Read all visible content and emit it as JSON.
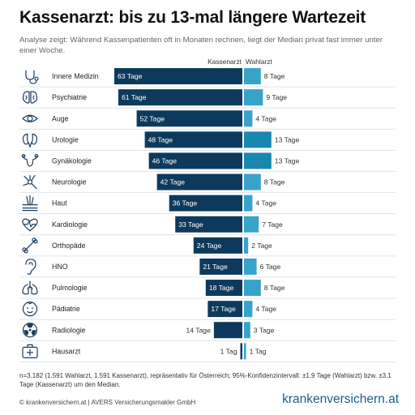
{
  "title": "Kassenarzt: bis zu 13-mal längere Wartezeit",
  "subtitle": "Analyse zeigt: Während Kassenpatienten oft in Monaten rechnen, liegt der Median privat fast immer unter einer Woche.",
  "footnote": "n=3.182 (1.591 Wahlarzt, 1.591 Kassenarzt), repräsentativ für Österreich; 95%-Konfidenzintervall: ±1,9 Tage (Wahlarzt) bzw. ±3,1 Tage (Kassenarzt) um den Median.",
  "copyright": "© krankenversichern.at | AVERS Versicherungsmakler  GmbH",
  "brand": "krankenversichern.at",
  "colors": {
    "kassenarzt": "#0d3a5c",
    "wahlarzt_high": "#1a87b0",
    "wahlarzt_low": "#38a3c9",
    "icon": "#1f3e5c",
    "divider": "#d9dde1"
  },
  "chart_data": {
    "type": "bar",
    "orientation": "horizontal-diverging",
    "unit": "Tage",
    "series": [
      {
        "name": "Kassenarzt",
        "values": [
          63,
          61,
          52,
          48,
          46,
          42,
          36,
          33,
          24,
          21,
          18,
          17,
          14,
          1
        ]
      },
      {
        "name": "Wahlarzt",
        "values": [
          8,
          9,
          4,
          13,
          13,
          8,
          4,
          7,
          2,
          6,
          8,
          4,
          3,
          1
        ]
      }
    ],
    "categories": [
      "Innere Medizin",
      "Psychiatrie",
      "Auge",
      "Urologie",
      "Gynäkologie",
      "Neurologie",
      "Haut",
      "Kardiologie",
      "Orthopäde",
      "HNO",
      "Pulmologie",
      "Pädiatrie",
      "Radiologie",
      "Hausarzt"
    ],
    "icons": [
      "stethoscope-icon",
      "brain-icon",
      "eye-icon",
      "kidney-icon",
      "uterus-icon",
      "neuron-icon",
      "skin-icon",
      "heart-pulse-icon",
      "bone-icon",
      "ear-icon",
      "lungs-icon",
      "child-face-icon",
      "radiation-icon",
      "medical-bag-icon"
    ],
    "kassen_labels": [
      "63 Tage",
      "61 Tage",
      "52 Tage",
      "48 Tage",
      "46 Tage",
      "42 Tage",
      "36 Tage",
      "33 Tage",
      "24 Tage",
      "21 Tage",
      "18 Tage",
      "17 Tage",
      "14 Tage",
      "1 Tag"
    ],
    "wahl_labels": [
      "8 Tage",
      "9 Tage",
      "4 Tage",
      "13 Tage",
      "13 Tage",
      "8 Tage",
      "4 Tage",
      "7 Tage",
      "2 Tage",
      "6 Tage",
      "8 Tage",
      "4 Tage",
      "3 Tage",
      "1 Tag"
    ],
    "legend": [
      "Kassenarzt",
      "Wahlarzt"
    ],
    "grid": false
  }
}
